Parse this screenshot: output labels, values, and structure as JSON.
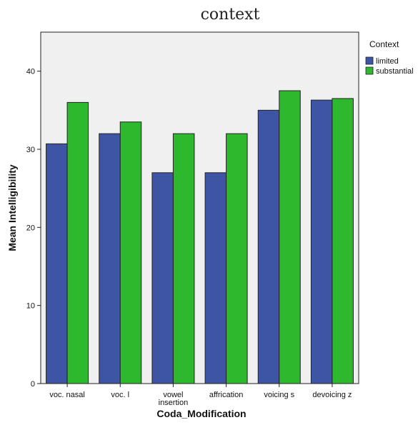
{
  "chart_data": {
    "type": "bar",
    "title": "context",
    "xlabel": "Coda_Modification",
    "ylabel": "Mean Intelligibility",
    "categories": [
      [
        "voc. nasal"
      ],
      [
        "voc. l"
      ],
      [
        "vowel",
        "insertion"
      ],
      [
        "affrication"
      ],
      [
        "voicing s"
      ],
      [
        "devoicing z"
      ]
    ],
    "series": [
      {
        "name": "limited",
        "color": "#3e55a6",
        "values": [
          30.7,
          32.0,
          27.0,
          27.0,
          35.0,
          36.3
        ]
      },
      {
        "name": "substantial",
        "color": "#2eb82e",
        "values": [
          36.0,
          33.5,
          32.0,
          32.0,
          37.5,
          36.5
        ]
      }
    ],
    "ylim": [
      0,
      45
    ],
    "yticks": [
      0,
      10,
      20,
      30,
      40
    ],
    "legend": {
      "title": "Context",
      "position": "right"
    },
    "plot_background": "#f0f0f0",
    "grid": false
  }
}
